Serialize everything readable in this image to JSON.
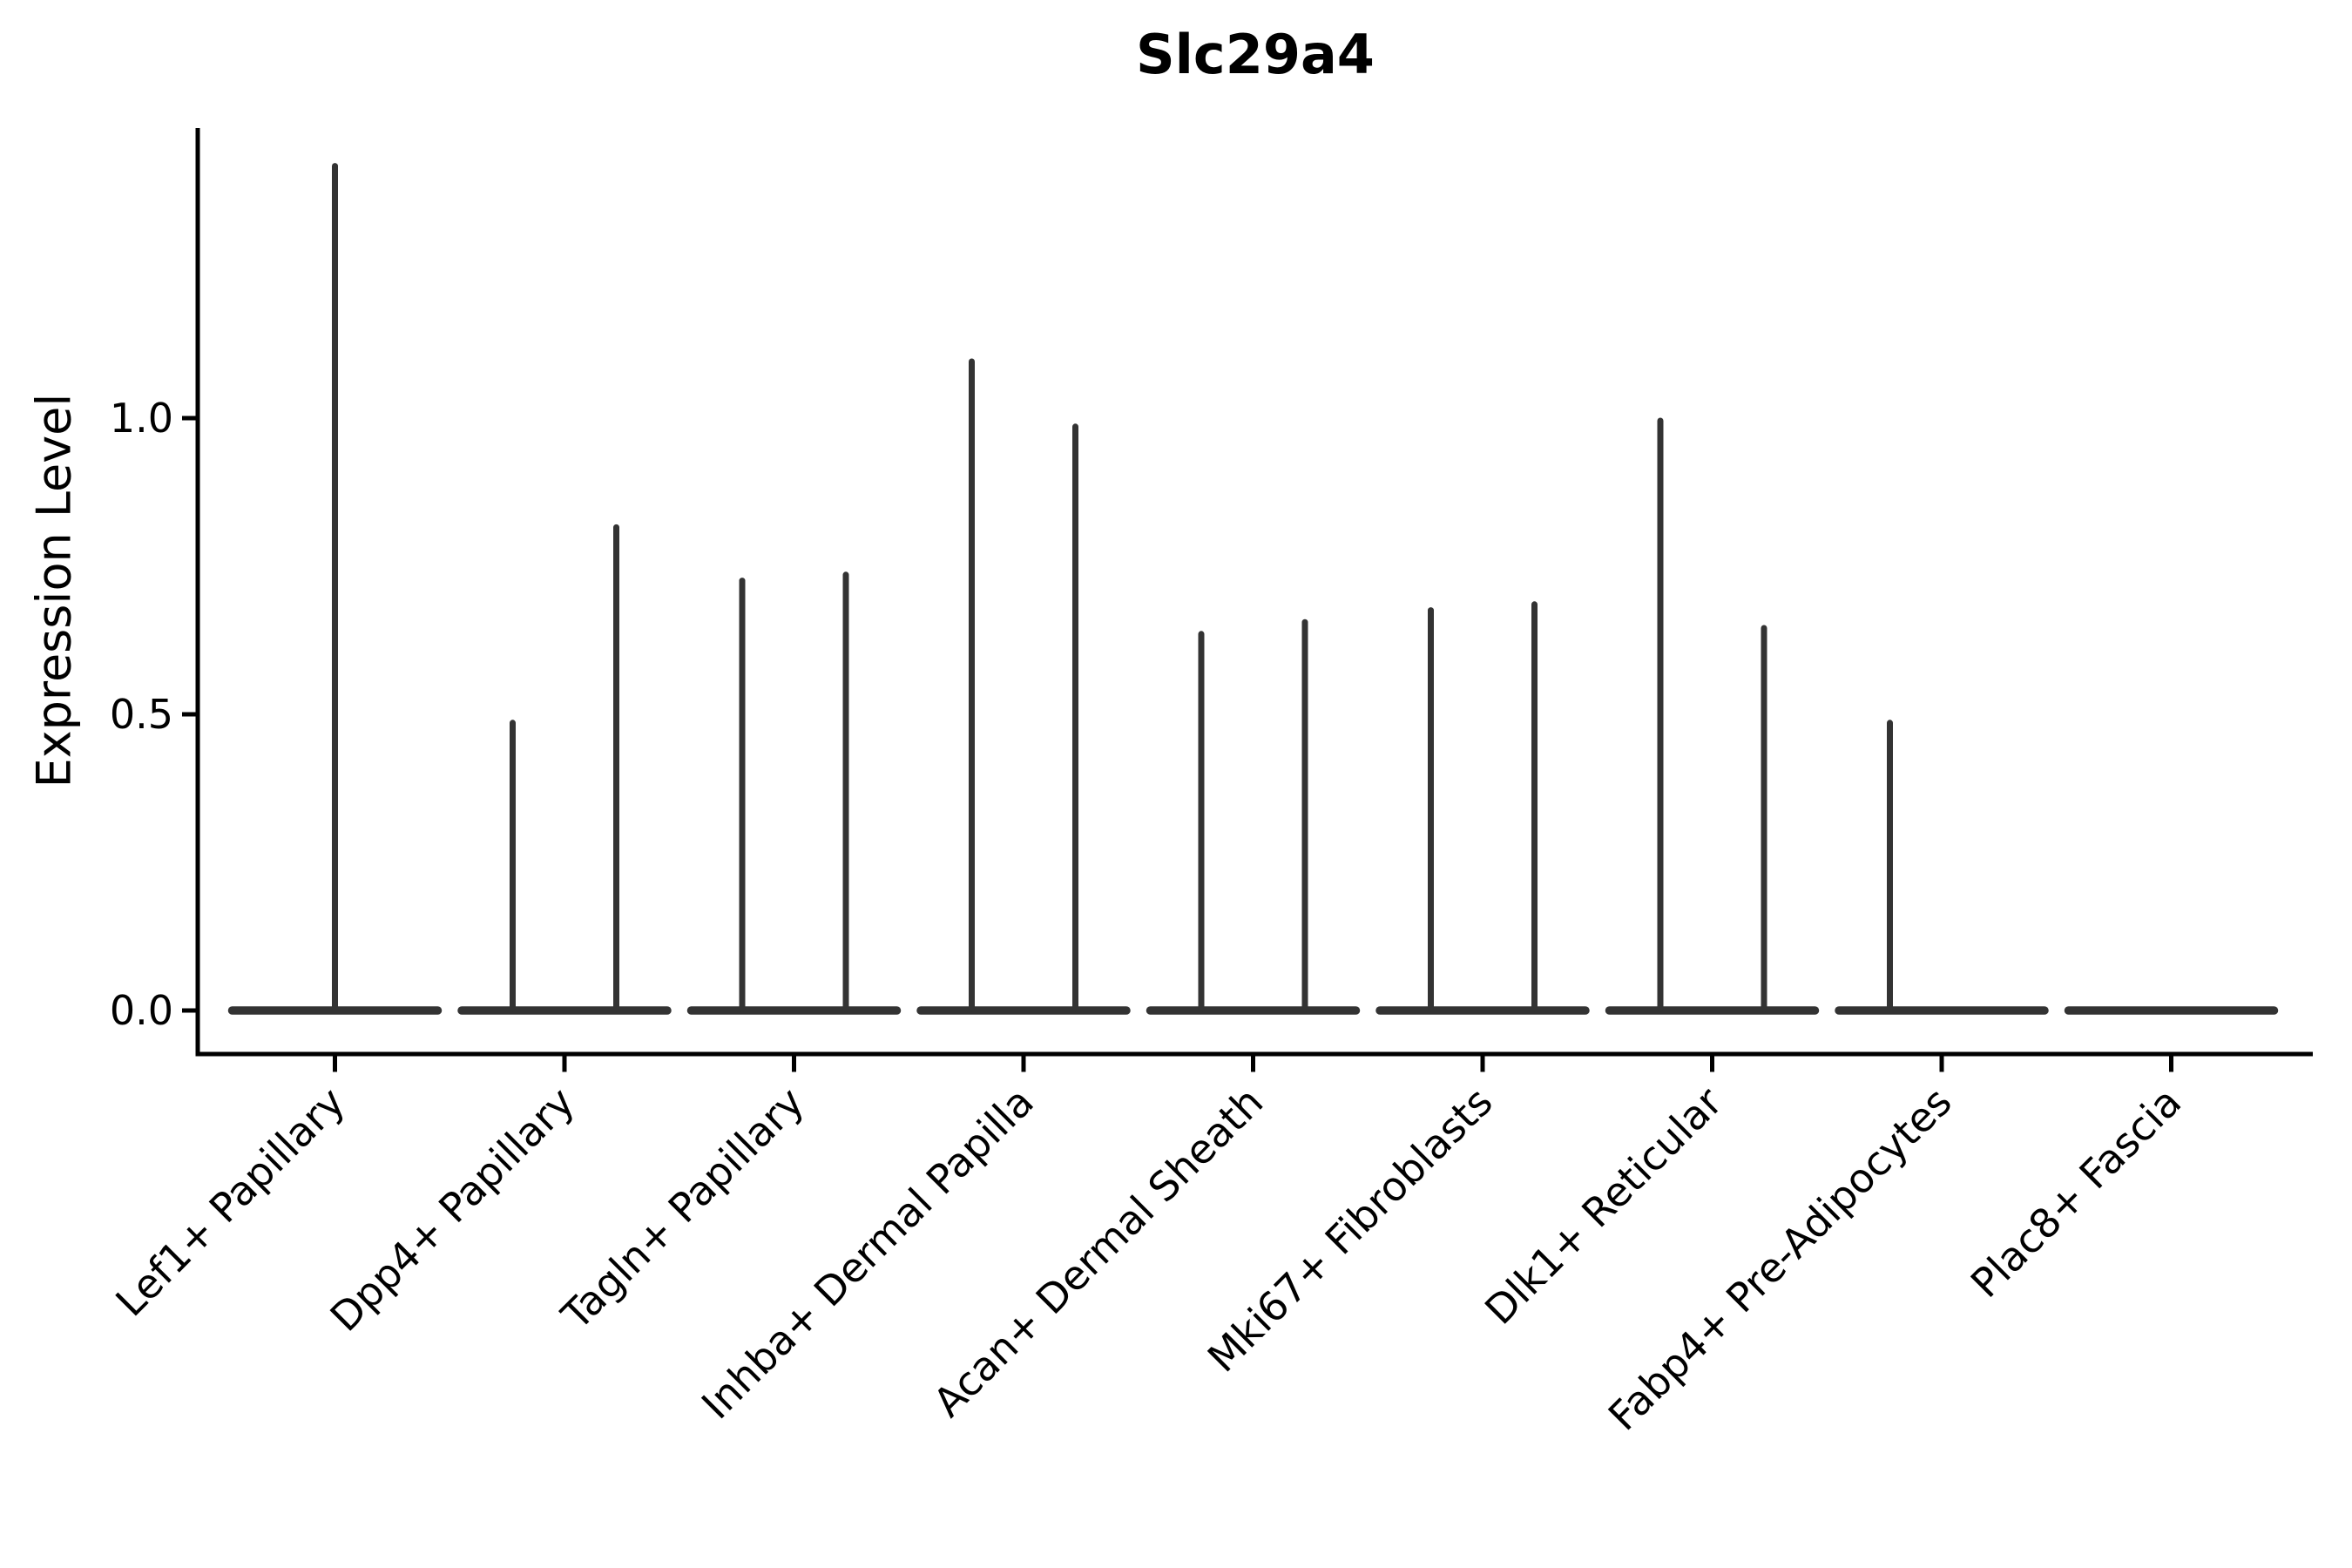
{
  "title": "Slc29a4",
  "axes": {
    "ylabel": "Expression Level",
    "xlabel": "",
    "yticks": [
      0,
      0.5,
      1.0
    ],
    "ytick_labels": [
      "0.0",
      "0.5",
      "1.0"
    ]
  },
  "colors": {
    "violin": "#333333",
    "axis": "#000000",
    "background": "#ffffff",
    "text": "#000000"
  },
  "chart_data": {
    "type": "violin",
    "title": "Slc29a4",
    "xlabel": "",
    "ylabel": "Expression Level",
    "grid": false,
    "legend": "none",
    "yticks": [
      0,
      0.5,
      1.0
    ],
    "ytick_labels": [
      "0.0",
      "0.5",
      "1.0"
    ],
    "ylim": [
      -0.07,
      1.49
    ],
    "categories": [
      "Lef1+ Papillary",
      "Dpp4+ Papillary",
      "Tagln+ Papillary",
      "Inhba+ Dermal Papilla",
      "Acan+ Dermal Sheath",
      "Mki67+ Fibroblasts",
      "Dlk1+ Reticular",
      "Fabp4+ Pre-Adipocytes",
      "Plac8+ Fascia"
    ],
    "violins": [
      {
        "category": "Lef1+ Papillary",
        "spikes": [
          {
            "pos": "center",
            "max": 1.43
          }
        ]
      },
      {
        "category": "Dpp4+ Papillary",
        "spikes": [
          {
            "pos": "left",
            "max": 0.49
          },
          {
            "pos": "right",
            "max": 0.82
          }
        ]
      },
      {
        "category": "Tagln+ Papillary",
        "spikes": [
          {
            "pos": "left",
            "max": 0.73
          },
          {
            "pos": "right",
            "max": 0.74
          }
        ]
      },
      {
        "category": "Inhba+ Dermal Papilla",
        "spikes": [
          {
            "pos": "left",
            "max": 1.1
          },
          {
            "pos": "right",
            "max": 0.99
          }
        ]
      },
      {
        "category": "Acan+ Dermal Sheath",
        "spikes": [
          {
            "pos": "left",
            "max": 0.64
          },
          {
            "pos": "right",
            "max": 0.66
          }
        ]
      },
      {
        "category": "Mki67+ Fibroblasts",
        "spikes": [
          {
            "pos": "left",
            "max": 0.68
          },
          {
            "pos": "right",
            "max": 0.69
          }
        ]
      },
      {
        "category": "Dlk1+ Reticular",
        "spikes": [
          {
            "pos": "left",
            "max": 1.0
          },
          {
            "pos": "right",
            "max": 0.65
          }
        ]
      },
      {
        "category": "Fabp4+ Pre-Adipocytes",
        "spikes": [
          {
            "pos": "left",
            "max": 0.49
          }
        ]
      },
      {
        "category": "Plac8+ Fascia",
        "spikes": []
      }
    ]
  }
}
